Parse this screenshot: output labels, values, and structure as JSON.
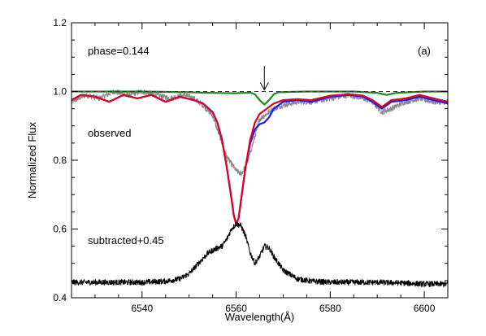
{
  "chart_data": {
    "type": "line",
    "title": "",
    "xlabel": "Wavelength(Å)",
    "ylabel": "Normalized Flux",
    "xlim": [
      6525,
      6605
    ],
    "ylim": [
      0.4,
      1.2
    ],
    "x_ticks": [
      6540,
      6560,
      6580,
      6600
    ],
    "y_ticks": [
      0.4,
      0.6,
      0.8,
      1.0,
      1.2
    ],
    "x_tick_labels": [
      "6540",
      "6560",
      "6580",
      "6600"
    ],
    "y_tick_labels": [
      "0.4",
      "0.6",
      "0.8",
      "1.0",
      "1.2"
    ],
    "grid": false,
    "annotations": {
      "phase": "phase=0.144",
      "panel": "(a)",
      "observed": "observed",
      "subtracted": "subtracted+0.45"
    },
    "arrow": {
      "x": 6566,
      "y_from": 1.06,
      "y_to": 1.0
    },
    "reference_line": {
      "y": 1.0,
      "style": "dashed"
    },
    "series": [
      {
        "color": "#888888",
        "noise": 0.008,
        "x": [
          6525,
          6528,
          6531,
          6534,
          6537,
          6540,
          6543,
          6546,
          6549,
          6551,
          6553,
          6555,
          6556,
          6557,
          6558,
          6559,
          6560,
          6561,
          6562,
          6563,
          6564,
          6565,
          6566,
          6567,
          6568,
          6570,
          6573,
          6576,
          6580,
          6584,
          6587,
          6589,
          6591,
          6593,
          6596,
          6599,
          6602,
          6605
        ],
        "values": [
          0.97,
          0.99,
          0.98,
          1.0,
          0.99,
          1.0,
          0.99,
          0.98,
          0.99,
          0.98,
          0.96,
          0.93,
          0.89,
          0.85,
          0.81,
          0.79,
          0.77,
          0.76,
          0.78,
          0.82,
          0.87,
          0.92,
          0.93,
          0.94,
          0.95,
          0.96,
          0.97,
          0.97,
          0.98,
          0.99,
          0.98,
          0.97,
          0.94,
          0.95,
          0.97,
          0.98,
          0.97,
          0.97
        ]
      },
      {
        "color": "#1a1aff",
        "noise": 0,
        "x": [
          6525,
          6527,
          6530,
          6533,
          6536,
          6539,
          6542,
          6545,
          6548,
          6551,
          6553,
          6555,
          6556,
          6557,
          6558,
          6559,
          6559.5,
          6560,
          6560.5,
          6561,
          6562,
          6563,
          6564,
          6565,
          6566,
          6567,
          6568,
          6570,
          6573,
          6576,
          6580,
          6584,
          6587,
          6589,
          6591,
          6593,
          6596,
          6599,
          6602,
          6605
        ],
        "values": [
          0.975,
          0.99,
          0.985,
          0.97,
          0.99,
          0.98,
          0.99,
          0.97,
          0.985,
          0.975,
          0.965,
          0.94,
          0.91,
          0.86,
          0.78,
          0.69,
          0.64,
          0.615,
          0.63,
          0.68,
          0.78,
          0.85,
          0.89,
          0.905,
          0.91,
          0.925,
          0.95,
          0.97,
          0.975,
          0.97,
          0.985,
          0.99,
          0.985,
          0.97,
          0.95,
          0.97,
          0.975,
          0.985,
          0.975,
          0.965
        ]
      },
      {
        "color": "#e00020",
        "noise": 0,
        "x": [
          6525,
          6527,
          6530,
          6533,
          6536,
          6539,
          6542,
          6545,
          6548,
          6551,
          6553,
          6555,
          6556,
          6557,
          6558,
          6559,
          6559.5,
          6560,
          6560.5,
          6561,
          6562,
          6563,
          6564,
          6565,
          6566,
          6567,
          6568,
          6570,
          6573,
          6576,
          6580,
          6584,
          6587,
          6589,
          6591,
          6593,
          6596,
          6599,
          6602,
          6605
        ],
        "values": [
          0.975,
          0.99,
          0.985,
          0.97,
          0.99,
          0.98,
          0.99,
          0.97,
          0.985,
          0.975,
          0.965,
          0.94,
          0.91,
          0.86,
          0.78,
          0.69,
          0.64,
          0.615,
          0.63,
          0.68,
          0.78,
          0.86,
          0.91,
          0.935,
          0.945,
          0.955,
          0.965,
          0.975,
          0.978,
          0.975,
          0.988,
          0.992,
          0.988,
          0.975,
          0.955,
          0.975,
          0.98,
          0.99,
          0.98,
          0.97
        ]
      },
      {
        "color": "#1a8a1a",
        "noise": 0,
        "x": [
          6525,
          6540,
          6550,
          6555,
          6560,
          6563,
          6564,
          6565,
          6566,
          6567,
          6568,
          6569,
          6575,
          6585,
          6590,
          6592,
          6594,
          6600,
          6605
        ],
        "values": [
          1.0,
          1.0,
          0.998,
          0.996,
          0.995,
          0.997,
          0.992,
          0.975,
          0.962,
          0.975,
          0.992,
          0.998,
          1.0,
          1.0,
          0.996,
          0.99,
          0.996,
          1.0,
          1.0
        ]
      },
      {
        "color": "#000000",
        "noise": 0.008,
        "x": [
          6525,
          6530,
          6535,
          6540,
          6545,
          6548,
          6550,
          6552,
          6554,
          6556,
          6557,
          6558,
          6559,
          6560,
          6561,
          6562,
          6563,
          6564,
          6565,
          6566,
          6567,
          6568,
          6570,
          6573,
          6576,
          6580,
          6585,
          6590,
          6595,
          6600,
          6605
        ],
        "values": [
          0.445,
          0.445,
          0.445,
          0.445,
          0.448,
          0.455,
          0.47,
          0.5,
          0.53,
          0.545,
          0.55,
          0.57,
          0.6,
          0.615,
          0.61,
          0.58,
          0.53,
          0.5,
          0.52,
          0.55,
          0.545,
          0.52,
          0.48,
          0.455,
          0.448,
          0.445,
          0.445,
          0.445,
          0.443,
          0.44,
          0.44
        ]
      }
    ]
  }
}
